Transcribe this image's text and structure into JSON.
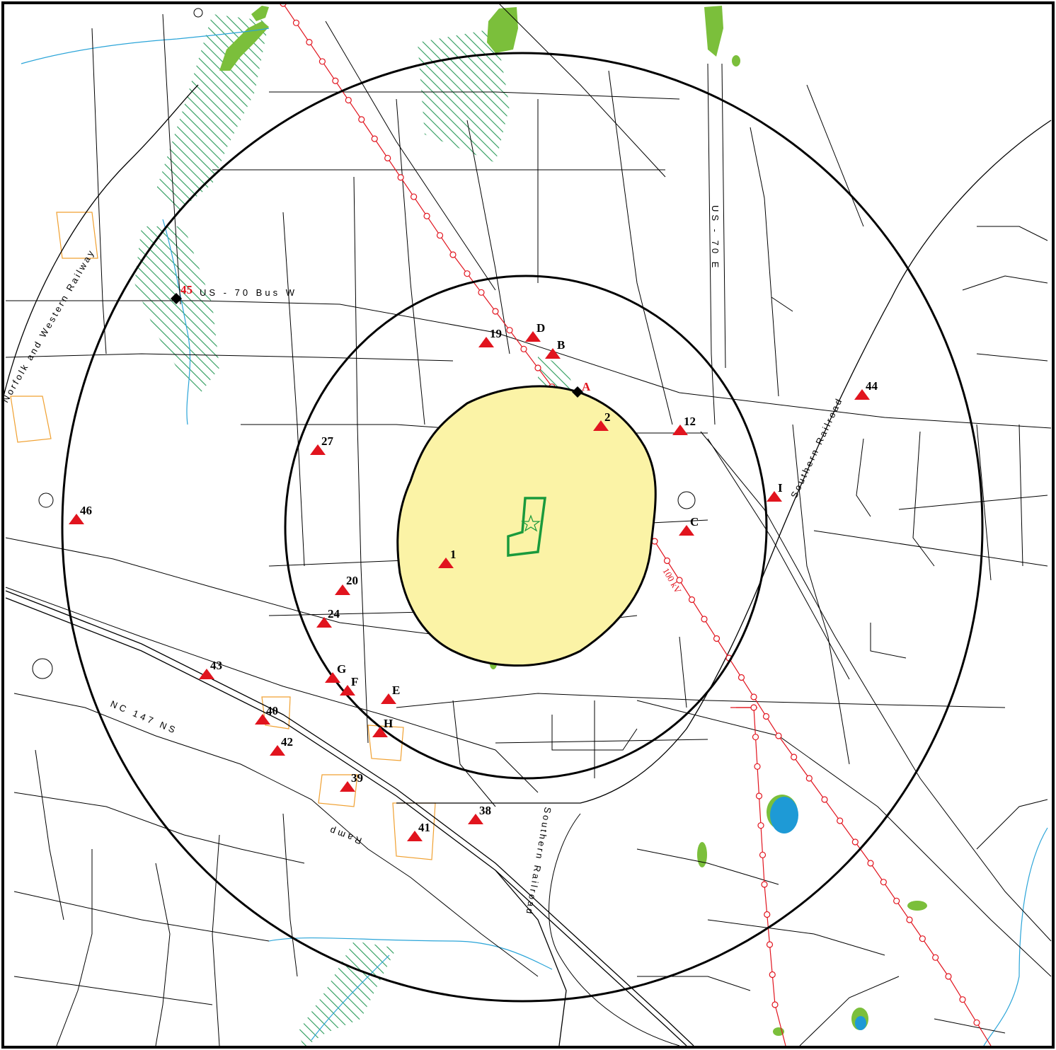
{
  "map": {
    "colors": {
      "frame": "#000000",
      "road": "#000000",
      "buffer_ring": "#000000",
      "impact_area_fill": "#fbf3a6",
      "site_outline": "#1a9a3c",
      "marker": "#e1141e",
      "powerline": "#e1141e",
      "wetland_hatch": "#2a9a5a",
      "vegetation": "#7bbf3b",
      "water": "#1e9ad6",
      "stream": "#2aa4d8",
      "parcel": "#f0a030"
    },
    "icons": {
      "triangle_marker": "red-triangle-icon",
      "diamond_marker": "black-diamond-icon",
      "site": "green-star-icon",
      "transmission_tower": "tower-circle-icon"
    },
    "powerline_label": "100 kV",
    "road_labels": [
      {
        "id": "us70",
        "text": "US - 70  Bus  W"
      },
      {
        "id": "us70e",
        "text": "US - 70  E"
      },
      {
        "id": "nc147",
        "text": "NC 147 NS"
      },
      {
        "id": "ramp",
        "text": "Ramp"
      }
    ],
    "railroad_labels": [
      {
        "id": "norfolk",
        "text": "Norfolk and Western Railway"
      },
      {
        "id": "southern_e",
        "text": "Southern Railroad"
      },
      {
        "id": "southern_s",
        "text": "Southern Railroad"
      }
    ],
    "markers": {
      "numbered": [
        "1",
        "2",
        "12",
        "19",
        "20",
        "24",
        "27",
        "38",
        "39",
        "40",
        "41",
        "42",
        "43",
        "44",
        "46"
      ],
      "lettered": [
        "B",
        "C",
        "D",
        "E",
        "F",
        "G",
        "H",
        "I"
      ],
      "diamonds": [
        "A",
        "45"
      ]
    }
  }
}
